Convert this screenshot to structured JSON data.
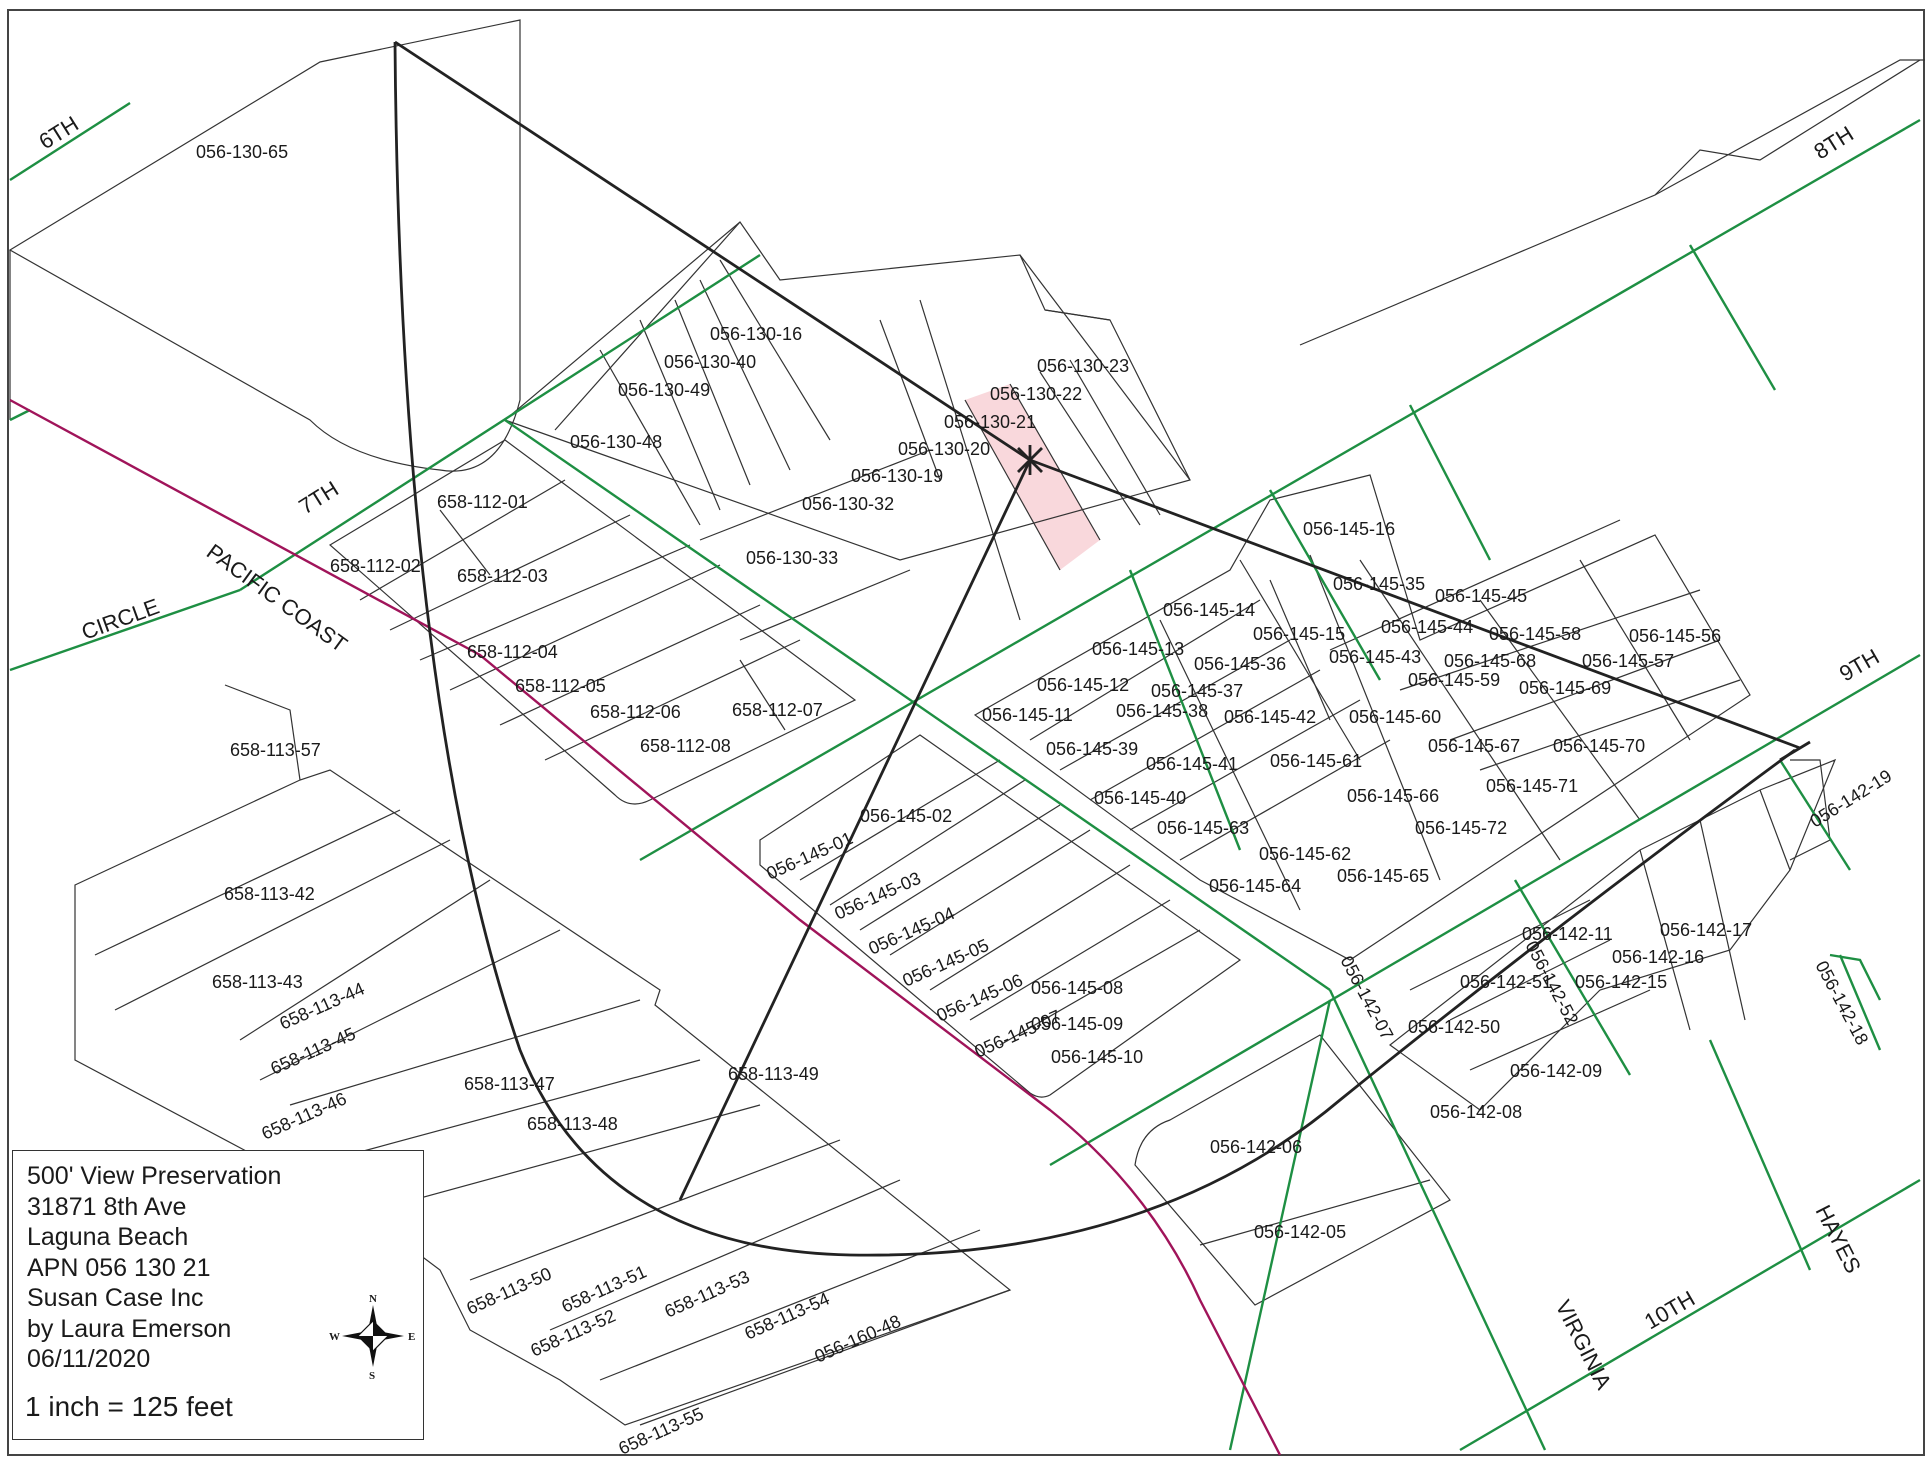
{
  "colors": {
    "street_line": "#1e8f43",
    "highway_line": "#a0145a",
    "subject_parcel_fill": "#f9d8dc",
    "parcel_line": "#333333",
    "view_line": "#222222"
  },
  "streets": {
    "sixth": "6TH",
    "seventh": "7TH",
    "eighth": "8TH",
    "ninth": "9TH",
    "tenth": "10TH",
    "pacific_coast": "PACIFIC COAST",
    "circle": "CIRCLE",
    "virginia": "VIRGINIA",
    "hayes": "HAYES"
  },
  "parcels": [
    "056-130-65",
    "056-130-16",
    "056-130-40",
    "056-130-49",
    "056-130-48",
    "056-130-23",
    "056-130-22",
    "056-130-21",
    "056-130-20",
    "056-130-19",
    "056-130-32",
    "056-130-33",
    "658-112-01",
    "658-112-02",
    "658-112-03",
    "658-112-04",
    "658-112-05",
    "658-112-06",
    "658-112-07",
    "658-112-08",
    "658-113-57",
    "658-113-42",
    "658-113-43",
    "658-113-44",
    "658-113-45",
    "658-113-46",
    "658-113-47",
    "658-113-48",
    "658-113-49",
    "658-113-50",
    "658-113-51",
    "658-113-52",
    "658-113-53",
    "658-113-54",
    "658-113-55",
    "056-160-48",
    "056-145-16",
    "056-145-35",
    "056-145-45",
    "056-145-14",
    "056-145-15",
    "056-145-44",
    "056-145-58",
    "056-145-56",
    "056-145-13",
    "056-145-36",
    "056-145-43",
    "056-145-68",
    "056-145-57",
    "056-145-12",
    "056-145-37",
    "056-145-59",
    "056-145-69",
    "056-145-11",
    "056-145-38",
    "056-145-42",
    "056-145-60",
    "056-145-39",
    "056-145-41",
    "056-145-61",
    "056-145-67",
    "056-145-70",
    "056-145-40",
    "056-145-66",
    "056-145-71",
    "056-145-63",
    "056-145-72",
    "056-145-62",
    "056-145-64",
    "056-145-65",
    "056-145-01",
    "056-145-02",
    "056-145-03",
    "056-145-04",
    "056-145-05",
    "056-145-06",
    "056-145-07",
    "056-145-08",
    "056-145-09",
    "056-145-10",
    "056-142-19",
    "056-142-11",
    "056-142-17",
    "056-142-16",
    "056-142-51",
    "056-142-15",
    "056-142-52",
    "056-142-07",
    "056-142-50",
    "056-142-09",
    "056-142-08",
    "056-142-18",
    "056-142-06",
    "056-142-05"
  ],
  "legend": {
    "line1": "500' View Preservation",
    "line2": "31871 8th Ave",
    "line3": "Laguna Beach",
    "line4": "APN 056 130 21",
    "line5": "Susan Case Inc",
    "line6": "by Laura Emerson",
    "line7": "06/11/2020",
    "scale": "1 inch = 125 feet"
  },
  "compass": {
    "n": "N",
    "s": "S",
    "e": "E",
    "w": "W"
  }
}
